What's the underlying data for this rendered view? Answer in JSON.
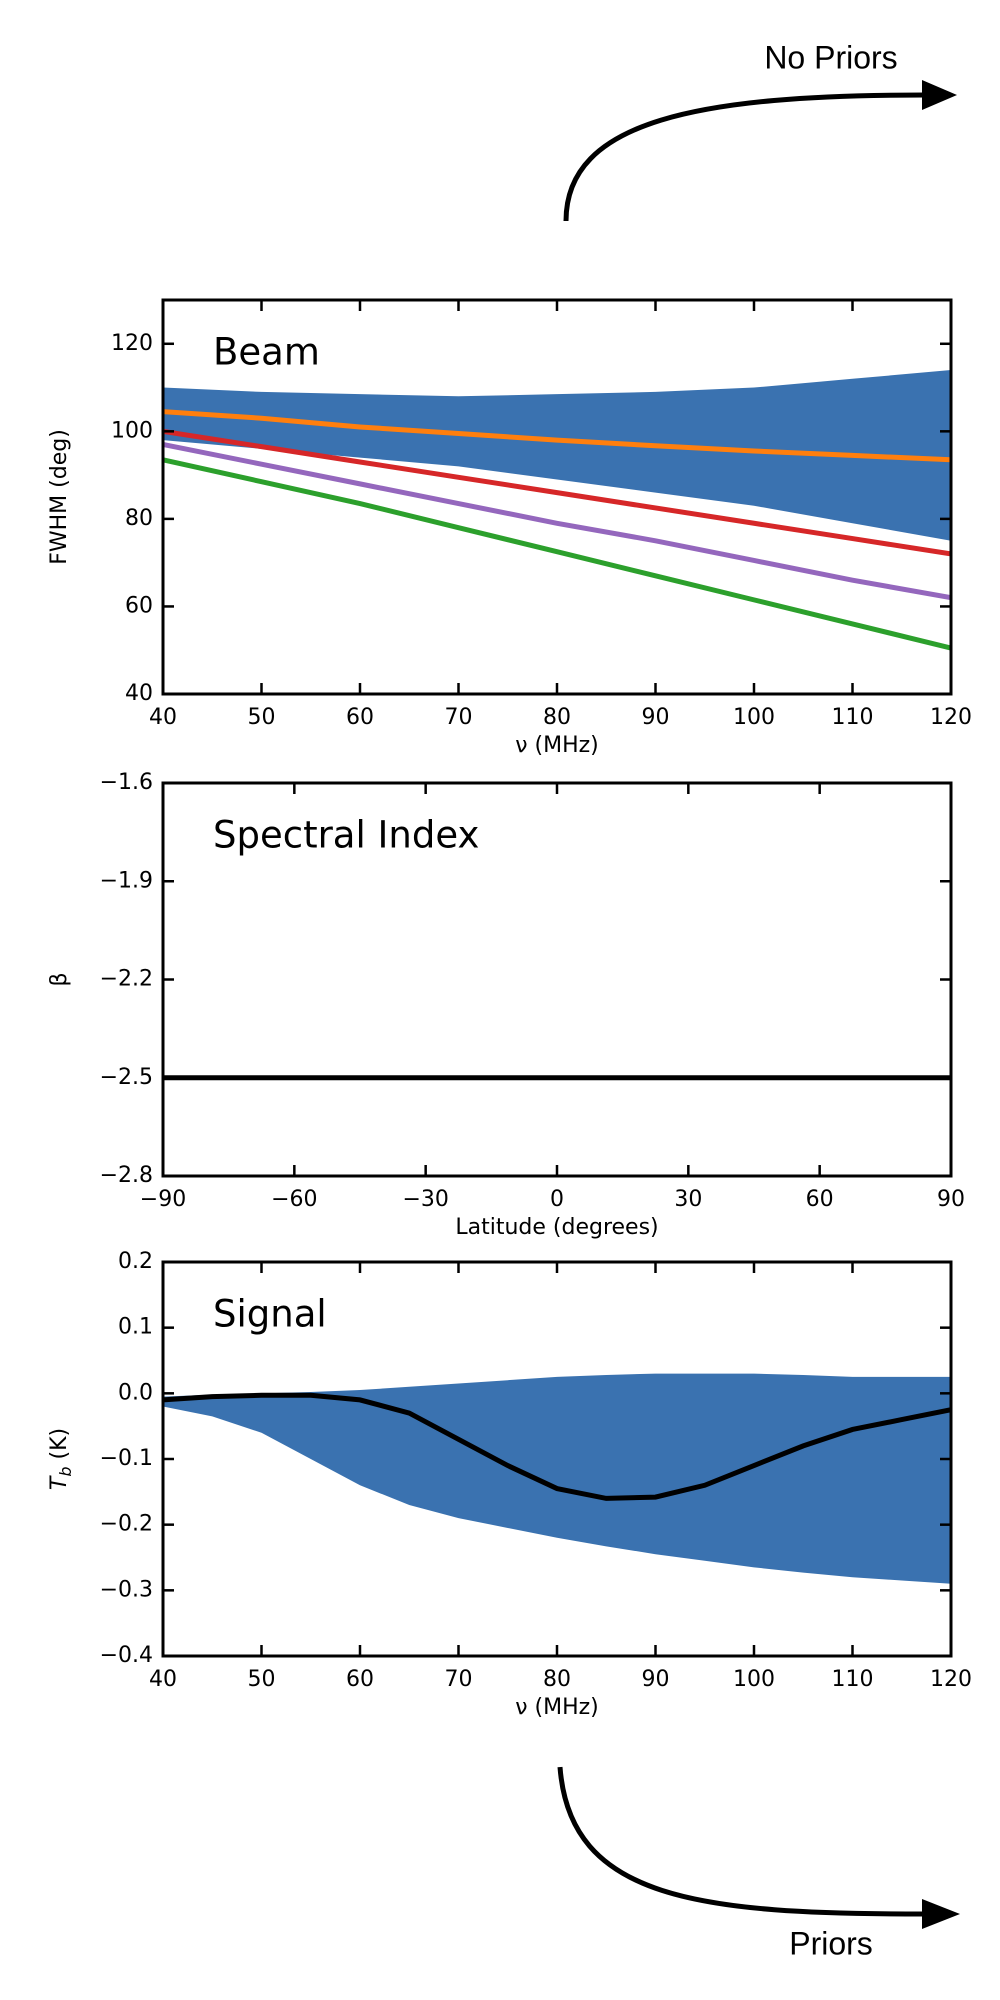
{
  "annotations": [
    "No Priors",
    "Priors"
  ],
  "chart_data": [
    {
      "type": "line",
      "title": "Beam",
      "x_label": "ν (MHz)",
      "y_label": "FWHM (deg)",
      "x": [
        40,
        50,
        60,
        70,
        80,
        90,
        100,
        110,
        120
      ],
      "xlim": [
        40,
        120
      ],
      "ylim": [
        40,
        130
      ],
      "xticks": [
        40,
        50,
        60,
        70,
        80,
        90,
        100,
        110,
        120
      ],
      "yticks": [
        40,
        60,
        80,
        100,
        120
      ],
      "band": {
        "color": "#1f5fa5",
        "upper": [
          110,
          109,
          108.5,
          108,
          108.5,
          109,
          110,
          112,
          114
        ],
        "lower": [
          98,
          96,
          94,
          92,
          89,
          86,
          83,
          79,
          75
        ]
      },
      "series": [
        {
          "color": "#ff7f0e",
          "values": [
            104.5,
            103,
            101,
            99.5,
            98,
            96.7,
            95.5,
            94.5,
            93.5
          ]
        },
        {
          "color": "#d62728",
          "values": [
            100,
            96.5,
            93,
            89.5,
            86,
            82.5,
            79,
            75.5,
            72
          ]
        },
        {
          "color": "#9467bd",
          "values": [
            97,
            92.5,
            88,
            83.5,
            79,
            75,
            70.5,
            66,
            62
          ]
        },
        {
          "color": "#2ca02c",
          "values": [
            93.5,
            88.5,
            83.5,
            78,
            72.5,
            67,
            61.5,
            56,
            50.5
          ]
        }
      ]
    },
    {
      "type": "line",
      "title": "Spectral Index",
      "x_label": "Latitude (degrees)",
      "y_label": "β",
      "x": [
        -90,
        90
      ],
      "xlim": [
        -90,
        90
      ],
      "ylim": [
        -2.8,
        -1.6
      ],
      "xticks": [
        {
          "value": -90,
          "label": "−90"
        },
        {
          "value": -60,
          "label": "−60"
        },
        {
          "value": -30,
          "label": "−30"
        },
        0,
        30,
        60,
        90
      ],
      "yticks": [
        {
          "value": -2.8,
          "label": "−2.8"
        },
        {
          "value": -2.5,
          "label": "−2.5"
        },
        {
          "value": -2.2,
          "label": "−2.2"
        },
        {
          "value": -1.9,
          "label": "−1.9"
        },
        {
          "value": -1.6,
          "label": "−1.6"
        }
      ],
      "series": [
        {
          "color": "#000000",
          "values": [
            -2.5,
            -2.5
          ]
        }
      ]
    },
    {
      "type": "line",
      "title": "Signal",
      "x_label": "ν (MHz)",
      "y_label": {
        "main": "T",
        "sub": "b",
        "rest": " (K)"
      },
      "x": [
        40,
        45,
        50,
        55,
        60,
        65,
        70,
        75,
        80,
        85,
        90,
        95,
        100,
        105,
        110,
        115,
        120
      ],
      "xlim": [
        40,
        120
      ],
      "ylim": [
        -0.4,
        0.2
      ],
      "xticks": [
        40,
        50,
        60,
        70,
        80,
        90,
        100,
        110,
        120
      ],
      "yticks": [
        {
          "value": -0.4,
          "label": "−0.4"
        },
        {
          "value": -0.3,
          "label": "−0.3"
        },
        {
          "value": -0.2,
          "label": "−0.2"
        },
        {
          "value": -0.1,
          "label": "−0.1"
        },
        {
          "value": 0,
          "label": "0.0"
        },
        0.1,
        0.2
      ],
      "band": {
        "color": "#1f5fa5",
        "upper": [
          -0.005,
          -0.002,
          0,
          0.002,
          0.005,
          0.01,
          0.015,
          0.02,
          0.025,
          0.028,
          0.03,
          0.03,
          0.03,
          0.028,
          0.025,
          0.025,
          0.025
        ],
        "lower": [
          -0.02,
          -0.035,
          -0.06,
          -0.1,
          -0.14,
          -0.17,
          -0.19,
          -0.205,
          -0.22,
          -0.233,
          -0.245,
          -0.255,
          -0.265,
          -0.273,
          -0.28,
          -0.285,
          -0.29
        ]
      },
      "series": [
        {
          "color": "#000000",
          "values": [
            -0.01,
            -0.005,
            -0.003,
            -0.003,
            -0.01,
            -0.03,
            -0.07,
            -0.11,
            -0.145,
            -0.16,
            -0.158,
            -0.14,
            -0.11,
            -0.08,
            -0.055,
            -0.04,
            -0.025
          ]
        }
      ]
    }
  ]
}
